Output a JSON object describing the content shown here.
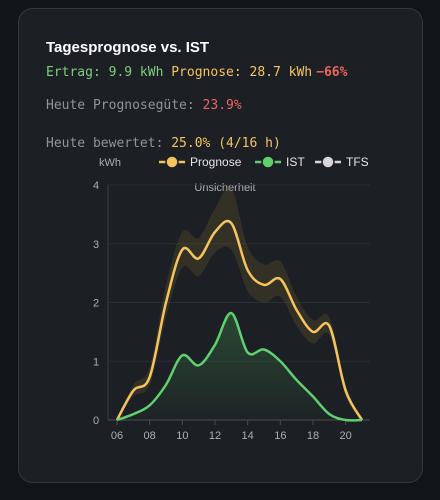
{
  "card": {
    "title": "Tagesprognose vs. IST",
    "summary": {
      "ertrag": "Ertrag: 9.9 kWh",
      "prognose": "Prognose: 28.7 kWh",
      "delta": "−66%"
    },
    "quality": {
      "label": "Heute Prognosegüte: ",
      "value": "23.9%"
    },
    "rated": {
      "label": "Heute bewertet: ",
      "value": "25.0% (4/16 h)"
    }
  },
  "chart_data": {
    "type": "line",
    "y_label": "kWh",
    "annotation": "Unsicherheit",
    "x": [
      6,
      7,
      8,
      9,
      10,
      11,
      12,
      13,
      14,
      15,
      16,
      17,
      18,
      19,
      20,
      21
    ],
    "xlim": [
      6,
      21
    ],
    "xticks": [
      {
        "value": 6,
        "label": "06"
      },
      {
        "value": 8,
        "label": "08"
      },
      10,
      12,
      14,
      16,
      18,
      20
    ],
    "ylim": [
      0,
      4
    ],
    "yticks": [
      0,
      1,
      2,
      3,
      4
    ],
    "grid": true,
    "series": [
      {
        "name": "Prognose",
        "color": "#f5c45e",
        "values": [
          0,
          0.5,
          0.73,
          2.0,
          2.9,
          2.75,
          3.2,
          3.35,
          2.55,
          2.3,
          2.4,
          1.87,
          1.5,
          1.6,
          0.5,
          0
        ]
      },
      {
        "name": "IST",
        "color": "#5fcf6f",
        "values": [
          0,
          0.1,
          0.25,
          0.6,
          1.1,
          0.93,
          1.28,
          1.82,
          1.15,
          1.2,
          1.0,
          0.68,
          0.4,
          0.1,
          0,
          0
        ]
      },
      {
        "name": "TFS",
        "color": "#d8d8d8",
        "values": [
          null,
          null,
          null,
          null,
          null,
          null,
          null,
          null,
          null,
          null,
          null,
          null,
          null,
          null,
          null,
          null
        ]
      }
    ],
    "band": {
      "upper": [
        0,
        0.6,
        0.9,
        2.3,
        3.2,
        3.1,
        3.6,
        3.95,
        2.95,
        2.65,
        2.7,
        2.1,
        1.7,
        1.75,
        0.6,
        0
      ],
      "lower": [
        0,
        0.4,
        0.6,
        1.75,
        2.6,
        2.45,
        2.85,
        2.9,
        2.2,
        2.0,
        2.1,
        1.6,
        1.3,
        1.45,
        0.4,
        0
      ]
    }
  }
}
